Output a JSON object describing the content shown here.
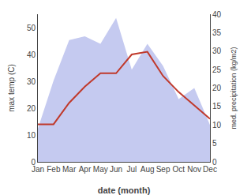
{
  "chart_data": {
    "type": "line",
    "xlabel": "date (month)",
    "ylabel": "max temp (C)",
    "y2label": "med. precipitation (kg/m2)",
    "categories": [
      "Jan",
      "Feb",
      "Mar",
      "Apr",
      "May",
      "Jun",
      "Jul",
      "Aug",
      "Sep",
      "Oct",
      "Nov",
      "Dec"
    ],
    "series": [
      {
        "type": "area",
        "axis": "y2",
        "color": "#c5caf0",
        "values": [
          9,
          22,
          33,
          34,
          32,
          39,
          25,
          32,
          26,
          17,
          20,
          10
        ]
      },
      {
        "type": "line",
        "color": "#c0392b",
        "values": [
          14,
          14,
          22,
          28,
          33,
          33,
          40,
          41,
          32,
          26,
          21,
          16
        ]
      }
    ],
    "ylim": [
      0,
      55
    ],
    "yticks": [
      0,
      10,
      20,
      30,
      40,
      50
    ],
    "y2lim": [
      0,
      40
    ],
    "y2ticks": [
      0,
      5,
      10,
      15,
      20,
      25,
      30,
      35,
      40
    ],
    "grid": false
  }
}
